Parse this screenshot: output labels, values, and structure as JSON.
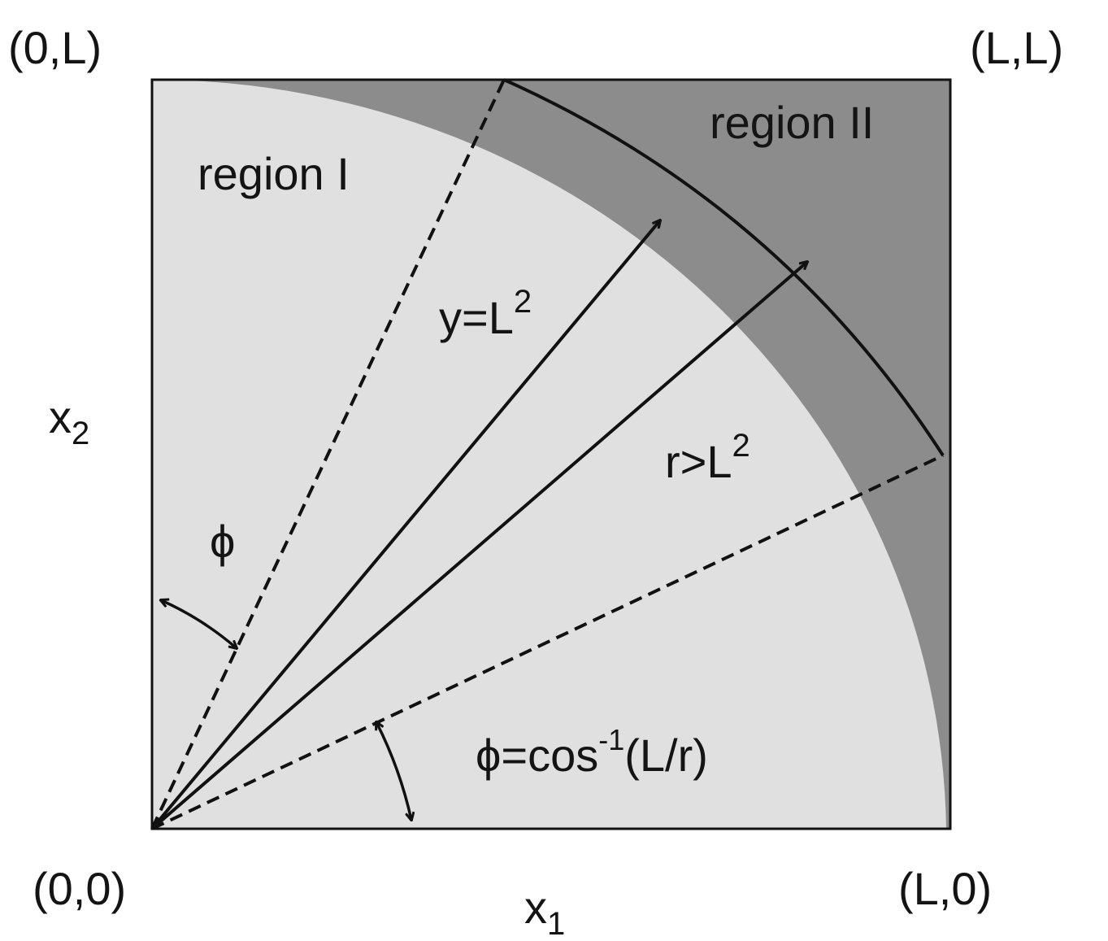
{
  "corners": {
    "top_left": "(0,L)",
    "top_right": "(L,L)",
    "bottom_left": "(0,0)",
    "bottom_right": "(L,0)"
  },
  "axes": {
    "x1": {
      "base": "x",
      "sub": "1"
    },
    "x2": {
      "base": "x",
      "sub": "2"
    }
  },
  "regions": {
    "region_1": "region I",
    "region_2": "region II"
  },
  "arcs": {
    "inner": {
      "base": "y=L",
      "sup": "2"
    },
    "outer": {
      "base": "r>L",
      "sup": "2"
    }
  },
  "angles": {
    "phi": "ϕ",
    "formula": {
      "prefix": "ϕ=cos",
      "sup": "-1",
      "suffix": "(L/r)"
    }
  },
  "colors": {
    "region_1": "#e0e0e0",
    "region_2": "#8c8c8c",
    "lines": "#111111",
    "background": "#ffffff"
  }
}
